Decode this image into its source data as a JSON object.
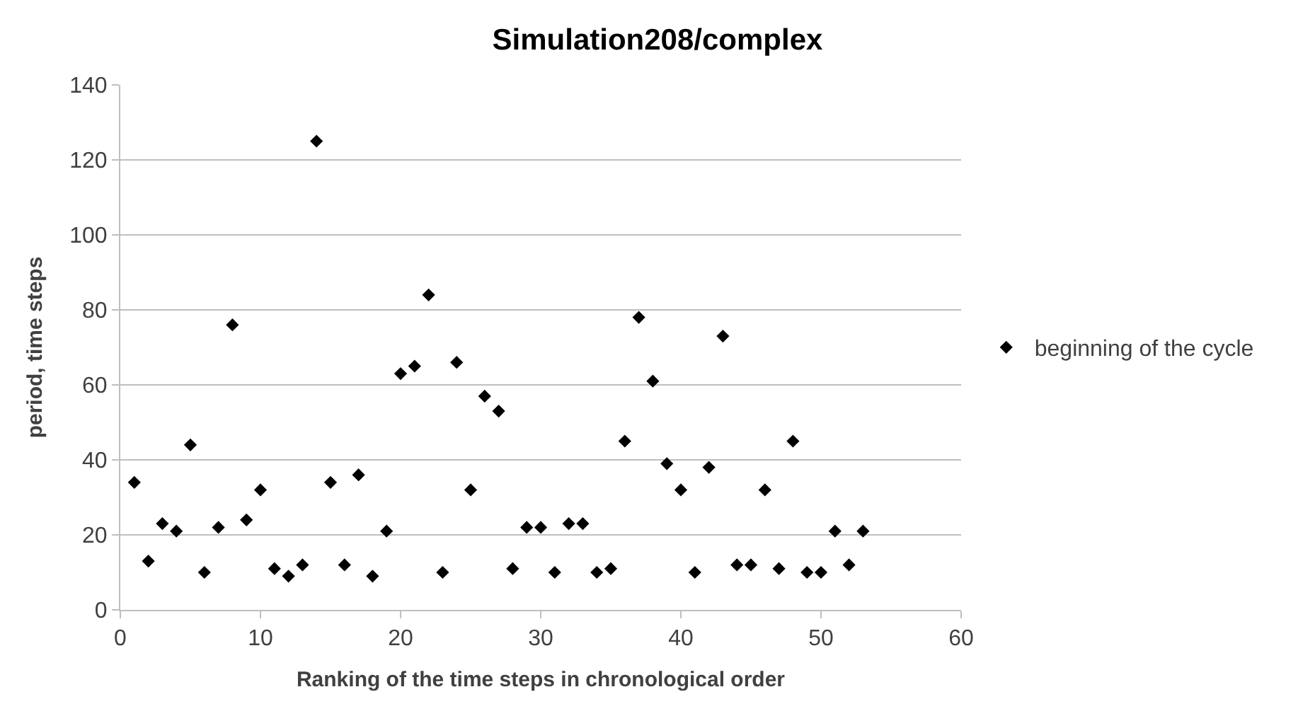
{
  "chart_data": {
    "type": "scatter",
    "title": "Simulation208/complex",
    "xlabel": "Ranking of the time steps in chronological order",
    "ylabel": "period, time steps",
    "x": [
      1,
      2,
      3,
      4,
      5,
      6,
      7,
      8,
      9,
      10,
      11,
      12,
      13,
      14,
      15,
      16,
      17,
      18,
      19,
      20,
      21,
      22,
      23,
      24,
      25,
      26,
      27,
      28,
      29,
      30,
      31,
      32,
      33,
      34,
      35,
      36,
      37,
      38,
      39,
      40,
      41,
      42,
      43,
      44,
      45,
      46,
      47,
      48,
      49,
      50,
      51,
      52,
      53
    ],
    "series": [
      {
        "name": "beginning of the cycle",
        "color": "#000000",
        "values": [
          34,
          13,
          23,
          21,
          44,
          10,
          22,
          76,
          24,
          32,
          11,
          9,
          12,
          125,
          34,
          12,
          36,
          9,
          21,
          63,
          65,
          84,
          10,
          66,
          32,
          57,
          53,
          11,
          22,
          22,
          10,
          23,
          23,
          10,
          11,
          45,
          78,
          61,
          39,
          32,
          10,
          38,
          73,
          12,
          12,
          32,
          11,
          45,
          10,
          10,
          21,
          12,
          21
        ]
      }
    ],
    "xlim": [
      0,
      60
    ],
    "xticks": [
      0,
      10,
      20,
      30,
      40,
      50,
      60
    ],
    "ylim": [
      0,
      140
    ],
    "yticks": [
      0,
      20,
      40,
      60,
      80,
      100,
      120,
      140
    ],
    "grid": "y",
    "legend": "right",
    "marker": "diamond"
  }
}
